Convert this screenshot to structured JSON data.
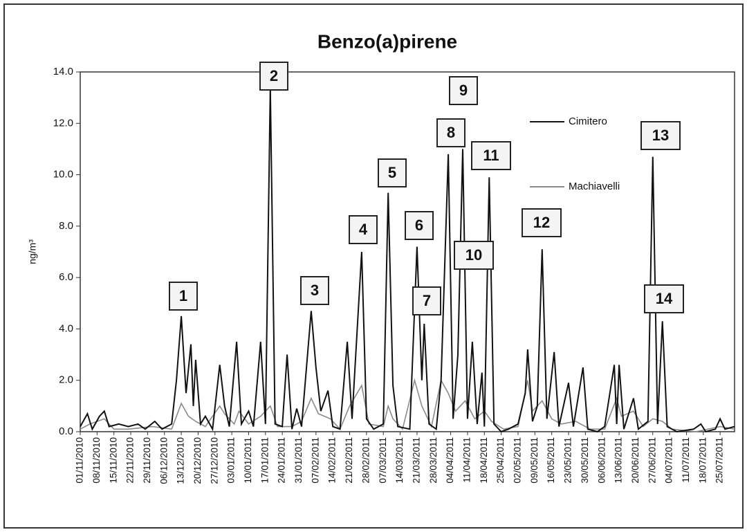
{
  "chart_data": {
    "type": "line",
    "title": "Benzo(a)pirene",
    "y_label": "ng/m³",
    "xlim": [
      "01/11/2010",
      "31/07/2011"
    ],
    "xticks": [
      "01/11/2010",
      "08/11/2010",
      "15/11/2010",
      "22/11/2010",
      "29/11/2010",
      "06/12/2010",
      "13/12/2010",
      "20/12/2010",
      "27/12/2010",
      "03/01/2011",
      "10/01/2011",
      "17/01/2011",
      "24/01/2011",
      "31/01/2011",
      "07/02/2011",
      "14/02/2011",
      "21/02/2011",
      "28/02/2011",
      "07/03/2011",
      "14/03/2011",
      "21/03/2011",
      "28/03/2011",
      "04/04/2011",
      "11/04/2011",
      "18/04/2011",
      "25/04/2011",
      "02/05/2011",
      "09/05/2011",
      "16/05/2011",
      "23/05/2011",
      "30/05/2011",
      "06/06/2011",
      "13/06/2011",
      "20/06/2011",
      "27/06/2011",
      "04/07/2011",
      "11/07/2011",
      "18/07/2011",
      "25/07/2011"
    ],
    "ylim": [
      0,
      14
    ],
    "yticks": [
      {
        "value": 0,
        "label": "0.0"
      },
      {
        "value": 2,
        "label": "2.0"
      },
      {
        "value": 4,
        "label": "4.0"
      },
      {
        "value": 6,
        "label": "6.0"
      },
      {
        "value": 8,
        "label": "8.0"
      },
      {
        "value": 10,
        "label": "10.0"
      },
      {
        "value": 12,
        "label": "12.0"
      },
      {
        "value": 14,
        "label": "14.0"
      }
    ],
    "legend": "upper right",
    "annotations": [
      "1",
      "2",
      "3",
      "4",
      "5",
      "6",
      "7",
      "8",
      "9",
      "10",
      "11",
      "12",
      "13",
      "14"
    ],
    "series": [
      {
        "name": "Cimitero",
        "color": "#111111",
        "x": [
          "01/11/2010",
          "04/11/2010",
          "06/11/2010",
          "09/11/2010",
          "11/11/2010",
          "13/11/2010",
          "17/11/2010",
          "21/11/2010",
          "25/11/2010",
          "28/11/2010",
          "02/12/2010",
          "05/12/2010",
          "09/12/2010",
          "11/12/2010",
          "13/12/2010",
          "15/12/2010",
          "17/12/2010",
          "18/12/2010",
          "19/12/2010",
          "21/12/2010",
          "23/12/2010",
          "26/12/2010",
          "29/12/2010",
          "31/12/2010",
          "02/01/2011",
          "05/01/2011",
          "07/01/2011",
          "10/01/2011",
          "12/01/2011",
          "15/01/2011",
          "17/01/2011",
          "19/01/2011",
          "21/01/2011",
          "24/01/2011",
          "26/01/2011",
          "28/01/2011",
          "30/01/2011",
          "01/02/2011",
          "05/02/2011",
          "07/02/2011",
          "09/02/2011",
          "12/02/2011",
          "14/02/2011",
          "17/02/2011",
          "20/02/2011",
          "22/02/2011",
          "26/02/2011",
          "28/02/2011",
          "03/03/2011",
          "07/03/2011",
          "09/03/2011",
          "11/03/2011",
          "13/03/2011",
          "18/03/2011",
          "21/03/2011",
          "23/03/2011",
          "24/03/2011",
          "26/03/2011",
          "29/03/2011",
          "31/03/2011",
          "03/04/2011",
          "05/04/2011",
          "07/04/2011",
          "09/04/2011",
          "11/04/2011",
          "13/04/2011",
          "15/04/2011",
          "17/04/2011",
          "18/04/2011",
          "20/04/2011",
          "22/04/2011",
          "25/04/2011",
          "28/04/2011",
          "02/05/2011",
          "05/05/2011",
          "06/05/2011",
          "08/05/2011",
          "10/05/2011",
          "12/05/2011",
          "14/05/2011",
          "17/05/2011",
          "19/05/2011",
          "23/05/2011",
          "25/05/2011",
          "29/05/2011",
          "31/05/2011",
          "04/06/2011",
          "07/06/2011",
          "11/06/2011",
          "12/06/2011",
          "13/06/2011",
          "15/06/2011",
          "19/06/2011",
          "21/06/2011",
          "25/06/2011",
          "27/06/2011",
          "29/06/2011",
          "01/07/2011",
          "03/07/2011",
          "07/07/2011",
          "14/07/2011",
          "17/07/2011",
          "19/07/2011",
          "23/07/2011",
          "25/07/2011",
          "27/07/2011",
          "31/07/2011"
        ],
        "values": [
          0.2,
          0.7,
          0.1,
          0.6,
          0.8,
          0.2,
          0.3,
          0.2,
          0.3,
          0.1,
          0.4,
          0.1,
          0.3,
          2.0,
          4.5,
          1.5,
          3.4,
          1.0,
          2.8,
          0.3,
          0.6,
          0.1,
          2.6,
          1.0,
          0.2,
          3.5,
          0.3,
          0.8,
          0.2,
          3.5,
          0.3,
          13.4,
          0.3,
          0.2,
          3.0,
          0.1,
          0.9,
          0.2,
          4.7,
          2.5,
          0.8,
          1.6,
          0.2,
          0.1,
          3.5,
          0.5,
          7.0,
          0.5,
          0.1,
          0.3,
          9.3,
          1.8,
          0.2,
          0.1,
          7.2,
          2.0,
          4.2,
          0.3,
          0.1,
          2.0,
          10.8,
          0.5,
          3.0,
          11.0,
          0.5,
          3.5,
          0.3,
          2.3,
          0.2,
          9.9,
          0.3,
          0.0,
          0.1,
          0.3,
          1.5,
          3.2,
          0.4,
          1.0,
          7.1,
          0.5,
          3.1,
          0.2,
          1.9,
          0.2,
          2.5,
          0.1,
          0.0,
          0.2,
          2.6,
          0.3,
          2.6,
          0.1,
          1.3,
          0.1,
          0.4,
          10.7,
          0.3,
          4.3,
          0.2,
          0.0,
          0.1,
          0.3,
          0.0,
          0.1,
          0.5,
          0.1,
          0.2
        ]
      },
      {
        "name": "Machiavelli",
        "color": "#8a8a8a",
        "x": [
          "01/11/2010",
          "05/11/2010",
          "11/11/2010",
          "15/11/2010",
          "21/11/2010",
          "01/12/2010",
          "09/12/2010",
          "13/12/2010",
          "16/12/2010",
          "19/12/2010",
          "23/12/2010",
          "29/12/2010",
          "31/12/2010",
          "04/01/2011",
          "06/01/2011",
          "10/01/2011",
          "15/01/2011",
          "19/01/2011",
          "22/01/2011",
          "28/01/2011",
          "01/02/2011",
          "05/02/2011",
          "08/02/2011",
          "13/02/2011",
          "17/02/2011",
          "21/02/2011",
          "26/02/2011",
          "01/03/2011",
          "07/03/2011",
          "09/03/2011",
          "11/03/2011",
          "15/03/2011",
          "20/03/2011",
          "23/03/2011",
          "27/03/2011",
          "31/03/2011",
          "03/04/2011",
          "06/04/2011",
          "10/04/2011",
          "14/04/2011",
          "18/04/2011",
          "21/04/2011",
          "26/04/2011",
          "02/05/2011",
          "06/05/2011",
          "08/05/2011",
          "12/05/2011",
          "16/05/2011",
          "20/05/2011",
          "26/05/2011",
          "01/06/2011",
          "07/06/2011",
          "12/06/2011",
          "14/06/2011",
          "19/06/2011",
          "23/06/2011",
          "27/06/2011",
          "01/07/2011",
          "05/07/2011",
          "15/07/2011",
          "25/07/2011",
          "31/07/2011"
        ],
        "values": [
          0.1,
          0.3,
          0.5,
          0.1,
          0.1,
          0.2,
          0.1,
          1.1,
          0.6,
          0.4,
          0.2,
          1.0,
          0.7,
          0.3,
          0.8,
          0.3,
          0.6,
          1.0,
          0.2,
          0.2,
          0.4,
          1.3,
          0.7,
          0.5,
          0.1,
          1.0,
          1.8,
          0.3,
          0.2,
          1.0,
          0.5,
          0.1,
          2.0,
          1.0,
          0.2,
          2.0,
          1.5,
          0.8,
          1.2,
          0.5,
          0.8,
          0.4,
          0.1,
          0.2,
          2.0,
          0.8,
          1.2,
          0.5,
          0.3,
          0.4,
          0.1,
          0.1,
          1.3,
          0.6,
          0.8,
          0.2,
          0.5,
          0.4,
          0.1,
          0.0,
          0.2,
          0.1
        ]
      }
    ]
  }
}
